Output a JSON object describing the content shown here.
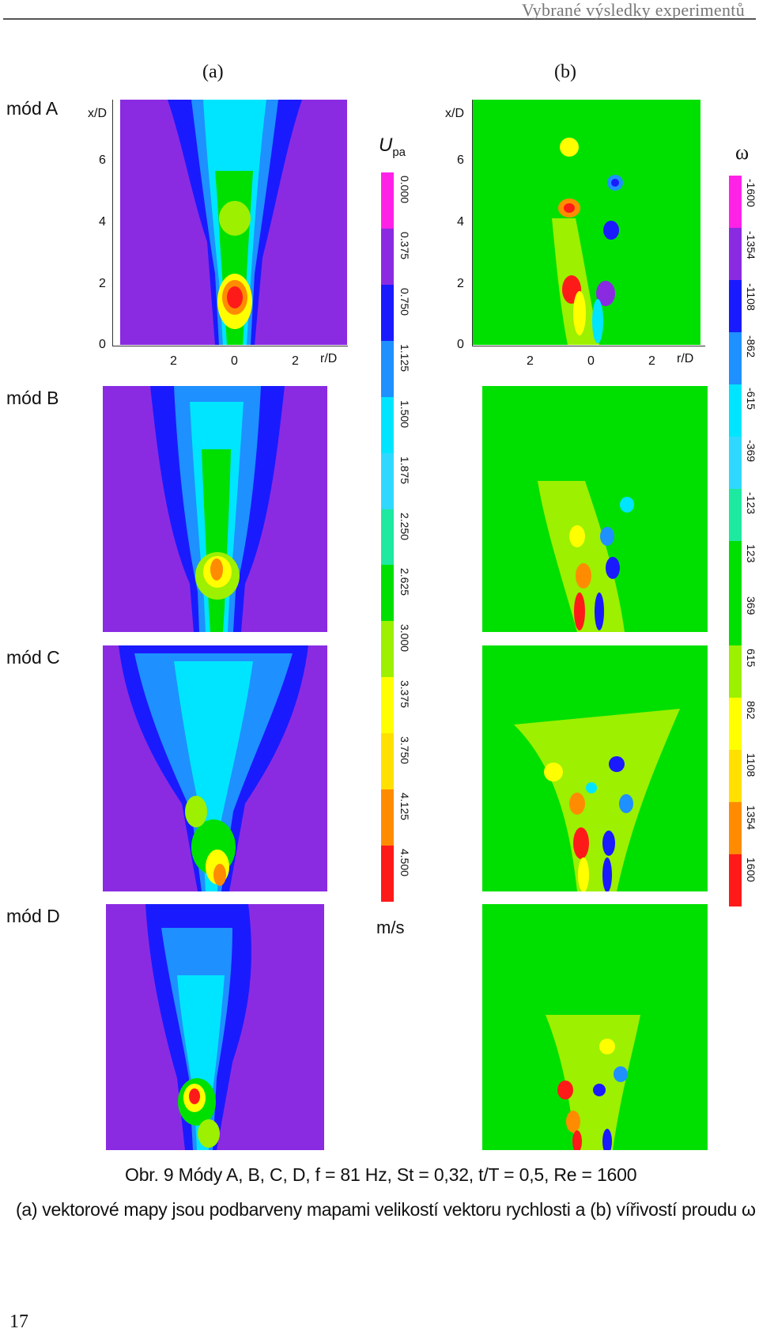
{
  "header": {
    "title": "Vybrané výsledky experimentů"
  },
  "columns": {
    "a": "(a)",
    "b": "(b)"
  },
  "modes": [
    "mód A",
    "mód B",
    "mód C",
    "mód D"
  ],
  "axes": {
    "x_label": "x/D",
    "r_label": "r/D",
    "x_ticks": [
      "0",
      "2",
      "4",
      "6"
    ],
    "r_ticks": [
      "2",
      "0",
      "2"
    ]
  },
  "colorbar_u": {
    "title_main": "U",
    "title_sub": "pa",
    "unit": "m/s",
    "labels": [
      "0.000",
      "0.375",
      "0.750",
      "1.125",
      "1.500",
      "1.875",
      "2.250",
      "2.625",
      "3.000",
      "3.375",
      "3.750",
      "4.125",
      "4.500"
    ],
    "colors": [
      "#ff22e6",
      "#8a2be2",
      "#1a1aff",
      "#1e90ff",
      "#00e5ff",
      "#30d8ff",
      "#1de9a0",
      "#00e000",
      "#9cf000",
      "#ffff00",
      "#ffe000",
      "#ff8c00",
      "#ff1a1a"
    ]
  },
  "colorbar_w": {
    "title": "ω",
    "labels": [
      "-1600",
      "-1354",
      "-1108",
      "-862",
      "-615",
      "-369",
      "-123",
      "123",
      "369",
      "615",
      "862",
      "1108",
      "1354",
      "1600"
    ],
    "colors": [
      "#ff22e6",
      "#8a2be2",
      "#1a1aff",
      "#1e90ff",
      "#00e5ff",
      "#30d8ff",
      "#1de9a0",
      "#00e000",
      "#00e000",
      "#9cf000",
      "#ffff00",
      "#ffe000",
      "#ff8c00",
      "#ff1a1a"
    ]
  },
  "caption": {
    "line1": "Obr. 9   Módy A, B, C, D, f = 81 Hz, St = 0,32, t/T = 0,5, Re = 1600",
    "line2": "(a) vektorové mapy jsou podbarveny mapami velikostí vektoru rychlosti a (b) vířivostí proudu ω"
  },
  "page_number": "17"
}
